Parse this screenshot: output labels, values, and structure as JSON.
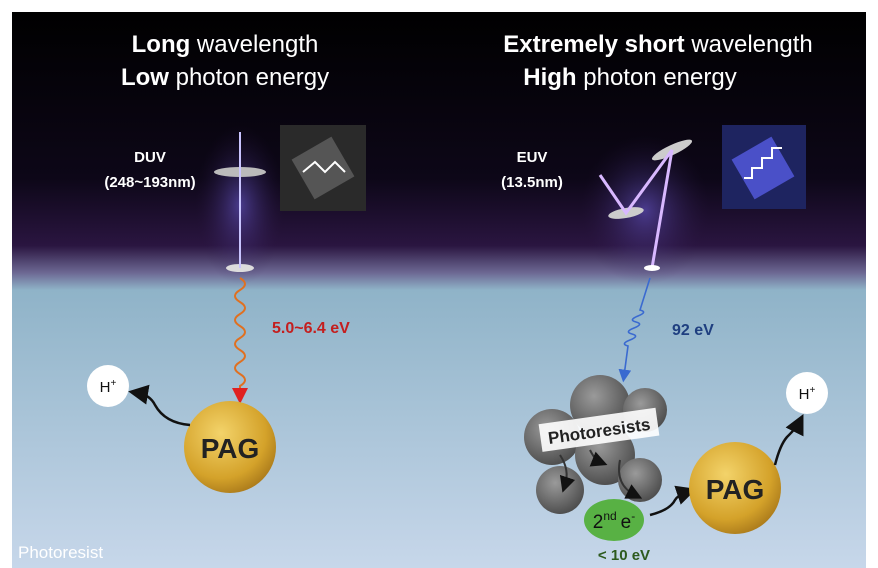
{
  "left": {
    "heading_line1": {
      "bold": "Long",
      "rest": " wavelength"
    },
    "heading_line2": {
      "bold": "Low",
      "rest": " photon energy"
    },
    "source": "DUV",
    "source_range": "(248~193nm)",
    "energy": "5.0~6.4 eV",
    "proton": {
      "base": "H",
      "sup": "+"
    },
    "pag": "PAG"
  },
  "right": {
    "heading_line1": {
      "bold": "Extremely short",
      "rest": " wavelength"
    },
    "heading_line2": {
      "bold": "High",
      "rest": " photon energy"
    },
    "source": "EUV",
    "source_range": "(13.5nm)",
    "energy": "92 eV",
    "resist_label": "Photoresists",
    "electron": {
      "number": "2",
      "ordinal": "nd",
      "symbol": "e",
      "charge": "-"
    },
    "electron_energy": "< 10 eV",
    "proton": {
      "base": "H",
      "sup": "+"
    },
    "pag": "PAG"
  },
  "footer": "Photoresist"
}
